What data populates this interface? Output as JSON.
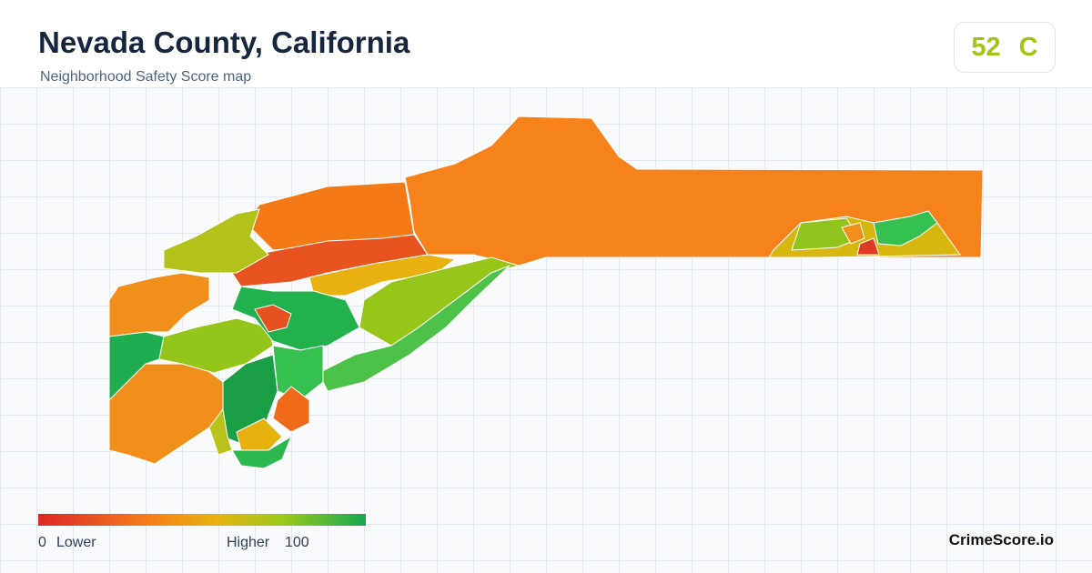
{
  "header": {
    "title": "Nevada County, California",
    "subtitle": "Neighborhood Safety Score map"
  },
  "score": {
    "value": 52,
    "grade": "C"
  },
  "legend": {
    "min": 0,
    "min_label": "Lower",
    "max_label": "Higher",
    "max": 100
  },
  "brand": "CrimeScore.io"
}
